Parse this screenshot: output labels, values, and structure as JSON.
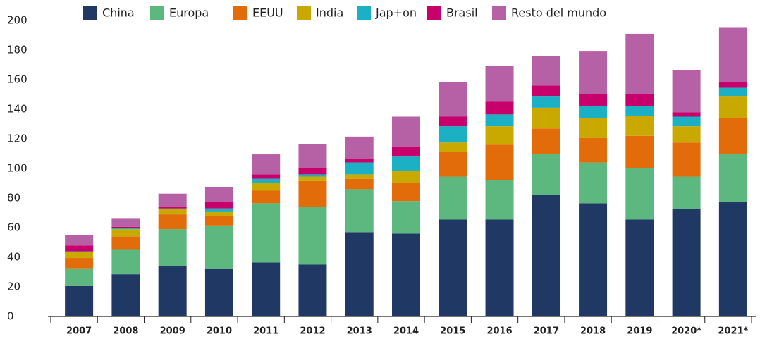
{
  "chart_data": {
    "type": "stacked_bar",
    "categories": [
      "2007",
      "2008",
      "2009",
      "2010",
      "2011",
      "2012",
      "2013",
      "2014",
      "2015",
      "2016",
      "2017",
      "2018",
      "2019",
      "2020*",
      "2021*"
    ],
    "series": [
      {
        "name": "China",
        "color": "#1f3864",
        "values": [
          20.5,
          28.5,
          34,
          32.5,
          36.5,
          35,
          57,
          56,
          65.5,
          65.5,
          82,
          76.5,
          65.5,
          72.5,
          77.5
        ]
      },
      {
        "name": "Europa",
        "color": "#5cb87e",
        "values": [
          12,
          16.5,
          25,
          29,
          40,
          39,
          29,
          22,
          29,
          26.5,
          27.5,
          27.5,
          34.5,
          22,
          32
        ]
      },
      {
        "name": "EEUU",
        "color": "#e36c0a",
        "values": [
          7,
          9,
          10,
          6.5,
          8.5,
          17.5,
          7,
          12,
          16.5,
          24,
          17.5,
          16.5,
          22,
          23,
          24.5
        ]
      },
      {
        "name": "India",
        "color": "#c9a800",
        "values": [
          4,
          5,
          3.5,
          2.5,
          5,
          3,
          3,
          8.5,
          6.5,
          12.5,
          14,
          13.5,
          13.5,
          11,
          15
        ]
      },
      {
        "name": "Jap+on",
        "color": "#1bb0c4",
        "values": [
          0.5,
          1,
          0.5,
          2.5,
          3,
          1.5,
          8,
          9.5,
          11,
          8,
          8,
          8,
          6.5,
          6.5,
          5.5
        ]
      },
      {
        "name": "Brasil",
        "color": "#c8006b",
        "values": [
          4,
          0.5,
          1,
          4.5,
          3,
          4,
          2.5,
          6.5,
          6.5,
          8.5,
          7,
          8,
          8,
          3,
          4
        ]
      },
      {
        "name": "Resto del mundo",
        "color": "#b660a6",
        "values": [
          7,
          5.5,
          9,
          10,
          13.5,
          16.5,
          15,
          20.5,
          23.5,
          24.5,
          20,
          29,
          41,
          28.5,
          36.5
        ]
      }
    ],
    "ylim": [
      0,
      200
    ],
    "yticks": [
      0,
      20,
      40,
      60,
      80,
      100,
      120,
      140,
      160,
      180,
      200
    ],
    "grid": false,
    "legend": "top"
  }
}
